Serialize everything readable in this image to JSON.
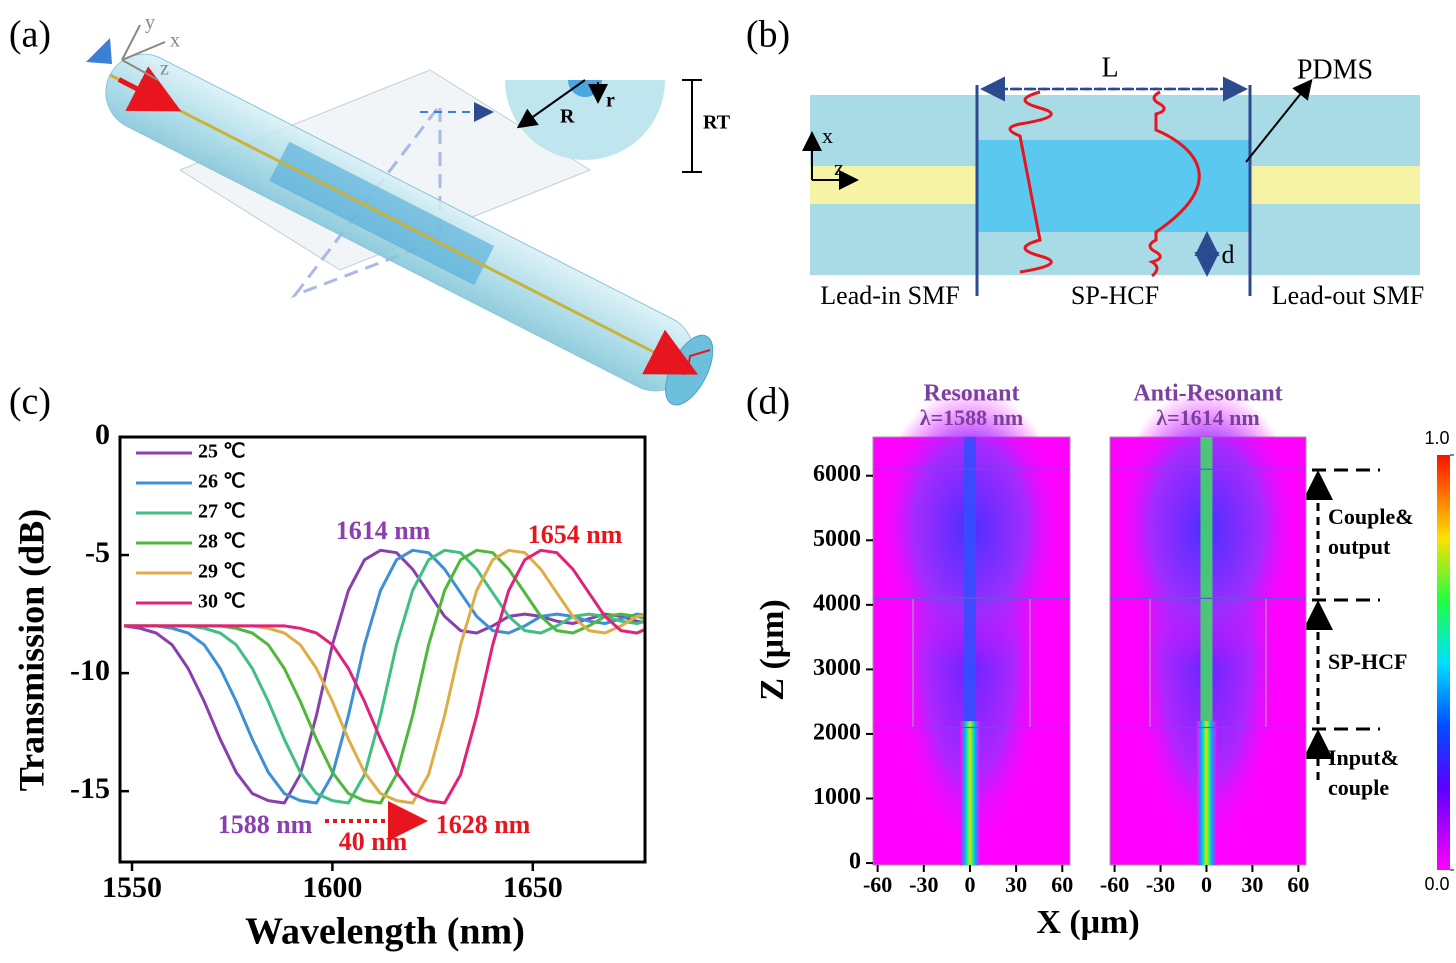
{
  "panel_a": {
    "label": "(a)",
    "axes": [
      "y",
      "x",
      "z"
    ],
    "inset": [
      "R",
      "r",
      "RT"
    ]
  },
  "panel_b": {
    "label": "(b)",
    "length": "L",
    "material": "PDMS",
    "axes": [
      "x",
      "z"
    ],
    "gap": "d",
    "sections": [
      "Lead-in SMF",
      "SP-HCF",
      "Lead-out SMF"
    ]
  },
  "chart_data": {
    "type": "line",
    "label": "(c)",
    "x_label": "Wavelength (nm)",
    "y_label": "Transmission (dB)",
    "xlim": [
      1547,
      1678
    ],
    "xticks": [
      1550,
      1600,
      1650
    ],
    "ylim": [
      -18,
      0
    ],
    "yticks": [
      0,
      -5,
      -10,
      -15
    ],
    "x": [
      1548,
      1552,
      1556,
      1560,
      1564,
      1568,
      1572,
      1576,
      1580,
      1584,
      1588,
      1592,
      1596,
      1600,
      1604,
      1608,
      1612,
      1616,
      1620,
      1624,
      1628,
      1632,
      1636,
      1640,
      1644,
      1648,
      1652,
      1656,
      1660,
      1664,
      1668,
      1672,
      1676,
      1680
    ],
    "series": [
      {
        "name": "25 ℃",
        "color": "#8a3fae",
        "values": [
          -8.0,
          -8.1,
          -8.3,
          -8.8,
          -9.8,
          -11.2,
          -12.8,
          -14.2,
          -15.1,
          -15.4,
          -15.5,
          -14.3,
          -11.8,
          -8.8,
          -6.5,
          -5.2,
          -4.8,
          -4.9,
          -5.6,
          -6.6,
          -7.6,
          -8.2,
          -8.3,
          -8.0,
          -7.6,
          -7.5,
          -7.6,
          -7.8,
          -7.9,
          -7.7,
          -7.5,
          -7.6,
          -7.8,
          -7.9
        ]
      },
      {
        "name": "26 ℃",
        "color": "#3d8fd6",
        "values": [
          -8.0,
          -8.0,
          -8.0,
          -8.1,
          -8.3,
          -8.8,
          -9.8,
          -11.2,
          -12.8,
          -14.2,
          -15.1,
          -15.4,
          -15.5,
          -14.3,
          -11.8,
          -8.8,
          -6.5,
          -5.2,
          -4.8,
          -4.9,
          -5.6,
          -6.6,
          -7.6,
          -8.2,
          -8.3,
          -8.0,
          -7.6,
          -7.5,
          -7.6,
          -7.8,
          -7.9,
          -7.7,
          -7.5,
          -7.6
        ]
      },
      {
        "name": "27 ℃",
        "color": "#3fbf82",
        "values": [
          -8.0,
          -8.0,
          -8.0,
          -8.0,
          -8.0,
          -8.1,
          -8.3,
          -8.8,
          -9.8,
          -11.2,
          -12.8,
          -14.2,
          -15.1,
          -15.4,
          -15.5,
          -14.3,
          -11.8,
          -8.8,
          -6.5,
          -5.2,
          -4.8,
          -4.9,
          -5.6,
          -6.6,
          -7.6,
          -8.2,
          -8.3,
          -8.0,
          -7.6,
          -7.5,
          -7.6,
          -7.8,
          -7.9,
          -7.7
        ]
      },
      {
        "name": "28 ℃",
        "color": "#4fb83a",
        "values": [
          -8.0,
          -8.0,
          -8.0,
          -8.0,
          -8.0,
          -8.0,
          -8.0,
          -8.1,
          -8.3,
          -8.8,
          -9.8,
          -11.2,
          -12.8,
          -14.2,
          -15.1,
          -15.4,
          -15.5,
          -14.3,
          -11.8,
          -8.8,
          -6.5,
          -5.2,
          -4.8,
          -4.9,
          -5.6,
          -6.6,
          -7.6,
          -8.2,
          -8.3,
          -8.0,
          -7.6,
          -7.5,
          -7.6,
          -7.8
        ]
      },
      {
        "name": "29 ℃",
        "color": "#e0ac45",
        "values": [
          -8.0,
          -8.0,
          -8.0,
          -8.0,
          -8.0,
          -8.0,
          -8.0,
          -8.0,
          -8.0,
          -8.1,
          -8.3,
          -8.8,
          -9.8,
          -11.2,
          -12.8,
          -14.2,
          -15.1,
          -15.4,
          -15.5,
          -14.3,
          -11.8,
          -8.8,
          -6.5,
          -5.2,
          -4.8,
          -4.9,
          -5.6,
          -6.6,
          -7.6,
          -8.2,
          -8.3,
          -8.0,
          -7.6,
          -7.5
        ]
      },
      {
        "name": "30 ℃",
        "color": "#e0237a",
        "values": [
          -8.0,
          -8.0,
          -8.0,
          -8.0,
          -8.0,
          -8.0,
          -8.0,
          -8.0,
          -8.0,
          -8.0,
          -8.0,
          -8.1,
          -8.3,
          -8.8,
          -9.8,
          -11.2,
          -12.8,
          -14.2,
          -15.1,
          -15.4,
          -15.5,
          -14.3,
          -11.8,
          -8.8,
          -6.5,
          -5.2,
          -4.8,
          -4.9,
          -5.6,
          -6.6,
          -7.6,
          -8.2,
          -8.3,
          -8.0
        ]
      }
    ],
    "legend": "upper left",
    "annotations": [
      {
        "text": "1614 nm",
        "color": "#8a3fae"
      },
      {
        "text": "1654 nm",
        "color": "#e8141e"
      },
      {
        "text": "1588 nm",
        "color": "#8a3fae"
      },
      {
        "text": "1628 nm",
        "color": "#e8141e"
      },
      {
        "text": "40 nm",
        "color": "#e8141e"
      }
    ]
  },
  "panel_d": {
    "label": "(d)",
    "maps": [
      {
        "title": "Resonant",
        "wavelength": "λ=1588 nm"
      },
      {
        "title": "Anti-Resonant",
        "wavelength": "λ=1614 nm"
      }
    ],
    "x_label": "X (μm)",
    "y_label": "Z (μm)",
    "xlim": [
      -63,
      65
    ],
    "xticks": [
      -60,
      -30,
      0,
      30,
      60
    ],
    "ylim": [
      -30,
      6600
    ],
    "yticks": [
      0,
      1000,
      2000,
      3000,
      4000,
      5000,
      6000
    ],
    "regions": [
      [
        "Couple&",
        "output"
      ],
      [
        "SP-HCF"
      ],
      [
        "Input&",
        "couple"
      ]
    ],
    "colorbar_lim": [
      0,
      1
    ],
    "colorbar_ticks": [
      {
        "value": 1,
        "label": "1.0"
      },
      {
        "value": 0,
        "label": "0.0"
      }
    ]
  }
}
